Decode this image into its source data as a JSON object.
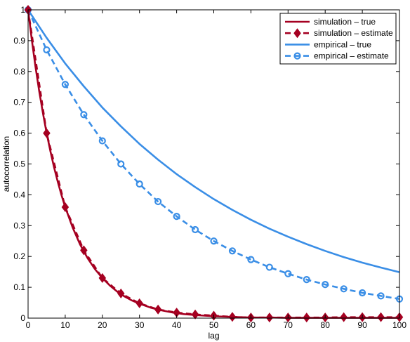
{
  "chart_data": {
    "type": "line",
    "xlabel": "lag",
    "ylabel": "autocorrelation",
    "xlim": [
      0,
      100
    ],
    "ylim": [
      0,
      1
    ],
    "xticks": [
      "0",
      "10",
      "20",
      "30",
      "40",
      "50",
      "60",
      "70",
      "80",
      "90",
      "100"
    ],
    "yticks": [
      "0",
      "0.1",
      "0.2",
      "0.3",
      "0.4",
      "0.5",
      "0.6",
      "0.7",
      "0.8",
      "0.9",
      "1"
    ],
    "grid": false,
    "legend_position": "top-right",
    "colors": {
      "simulation": "#a50021",
      "empirical": "#3a8ee6"
    },
    "series": [
      {
        "name": "simulation – true",
        "style": "solid",
        "marker": "none",
        "x": [
          0,
          1,
          2,
          3,
          4,
          5,
          6,
          7,
          8,
          9,
          10,
          12,
          14,
          16,
          18,
          20,
          22,
          24,
          26,
          28,
          30,
          33,
          36,
          39,
          42,
          45,
          50,
          55,
          60,
          65,
          70,
          75,
          80,
          85,
          90,
          95,
          100
        ],
        "y": [
          1.0,
          0.903,
          0.815,
          0.736,
          0.665,
          0.6,
          0.542,
          0.489,
          0.442,
          0.399,
          0.36,
          0.294,
          0.239,
          0.195,
          0.159,
          0.13,
          0.106,
          0.086,
          0.07,
          0.057,
          0.047,
          0.034,
          0.025,
          0.018,
          0.013,
          0.01,
          0.006,
          0.004,
          0.002,
          0.002,
          0.001,
          0.001,
          0.001,
          0.001,
          0.001,
          0.001,
          0.001
        ]
      },
      {
        "name": "simulation – estimate",
        "style": "dashed",
        "marker": "diamond",
        "x": [
          0,
          5,
          10,
          15,
          20,
          25,
          30,
          35,
          40,
          45,
          50,
          55,
          60,
          65,
          70,
          75,
          80,
          85,
          90,
          95,
          100
        ],
        "y": [
          1.0,
          0.6,
          0.36,
          0.22,
          0.13,
          0.08,
          0.048,
          0.028,
          0.018,
          0.012,
          0.008,
          0.004,
          0.002,
          0.002,
          0.002,
          0.002,
          0.002,
          0.003,
          0.003,
          0.003,
          0.003
        ]
      },
      {
        "name": "empirical – true",
        "style": "solid",
        "marker": "none",
        "x": [
          0,
          5,
          10,
          15,
          20,
          25,
          30,
          35,
          40,
          45,
          50,
          55,
          60,
          65,
          70,
          75,
          80,
          85,
          90,
          95,
          100
        ],
        "y": [
          1.0,
          0.909,
          0.826,
          0.752,
          0.683,
          0.622,
          0.565,
          0.514,
          0.467,
          0.425,
          0.386,
          0.351,
          0.319,
          0.29,
          0.264,
          0.24,
          0.218,
          0.198,
          0.18,
          0.164,
          0.149
        ]
      },
      {
        "name": "empirical – estimate",
        "style": "dashed",
        "marker": "circle",
        "x": [
          0,
          5,
          10,
          15,
          20,
          25,
          30,
          35,
          40,
          45,
          50,
          55,
          60,
          65,
          70,
          75,
          80,
          85,
          90,
          95,
          100
        ],
        "y": [
          1.0,
          0.87,
          0.758,
          0.66,
          0.575,
          0.5,
          0.435,
          0.378,
          0.33,
          0.287,
          0.25,
          0.218,
          0.19,
          0.165,
          0.144,
          0.125,
          0.109,
          0.095,
          0.082,
          0.072,
          0.062
        ]
      }
    ]
  }
}
